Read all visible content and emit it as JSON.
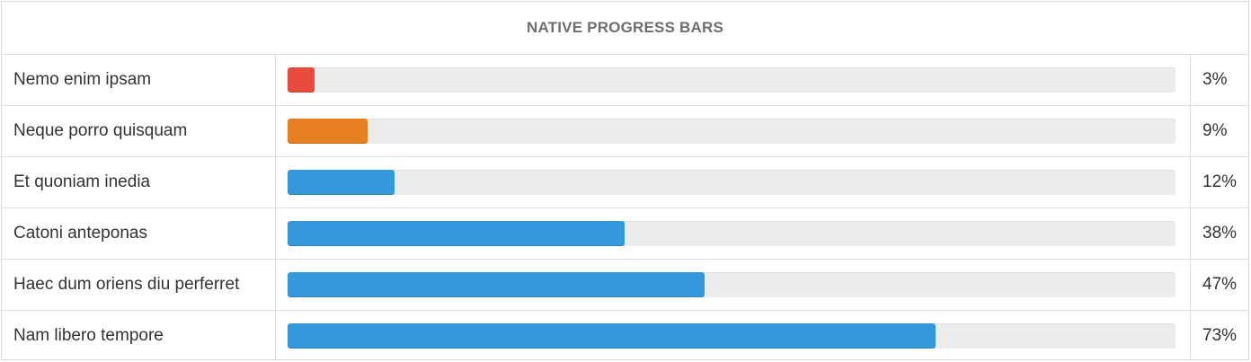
{
  "panel": {
    "title": "NATIVE PROGRESS BARS"
  },
  "rows": [
    {
      "label": "Nemo enim ipsam",
      "value": 3,
      "percent_text": "3%",
      "color": "#e74c3c"
    },
    {
      "label": "Neque porro quisquam",
      "value": 9,
      "percent_text": "9%",
      "color": "#e67e22"
    },
    {
      "label": "Et quoniam inedia",
      "value": 12,
      "percent_text": "12%",
      "color": "#3498db"
    },
    {
      "label": "Catoni anteponas",
      "value": 38,
      "percent_text": "38%",
      "color": "#3498db"
    },
    {
      "label": "Haec dum oriens diu perferret",
      "value": 47,
      "percent_text": "47%",
      "color": "#3498db"
    },
    {
      "label": "Nam libero tempore",
      "value": 73,
      "percent_text": "73%",
      "color": "#3498db"
    }
  ]
}
